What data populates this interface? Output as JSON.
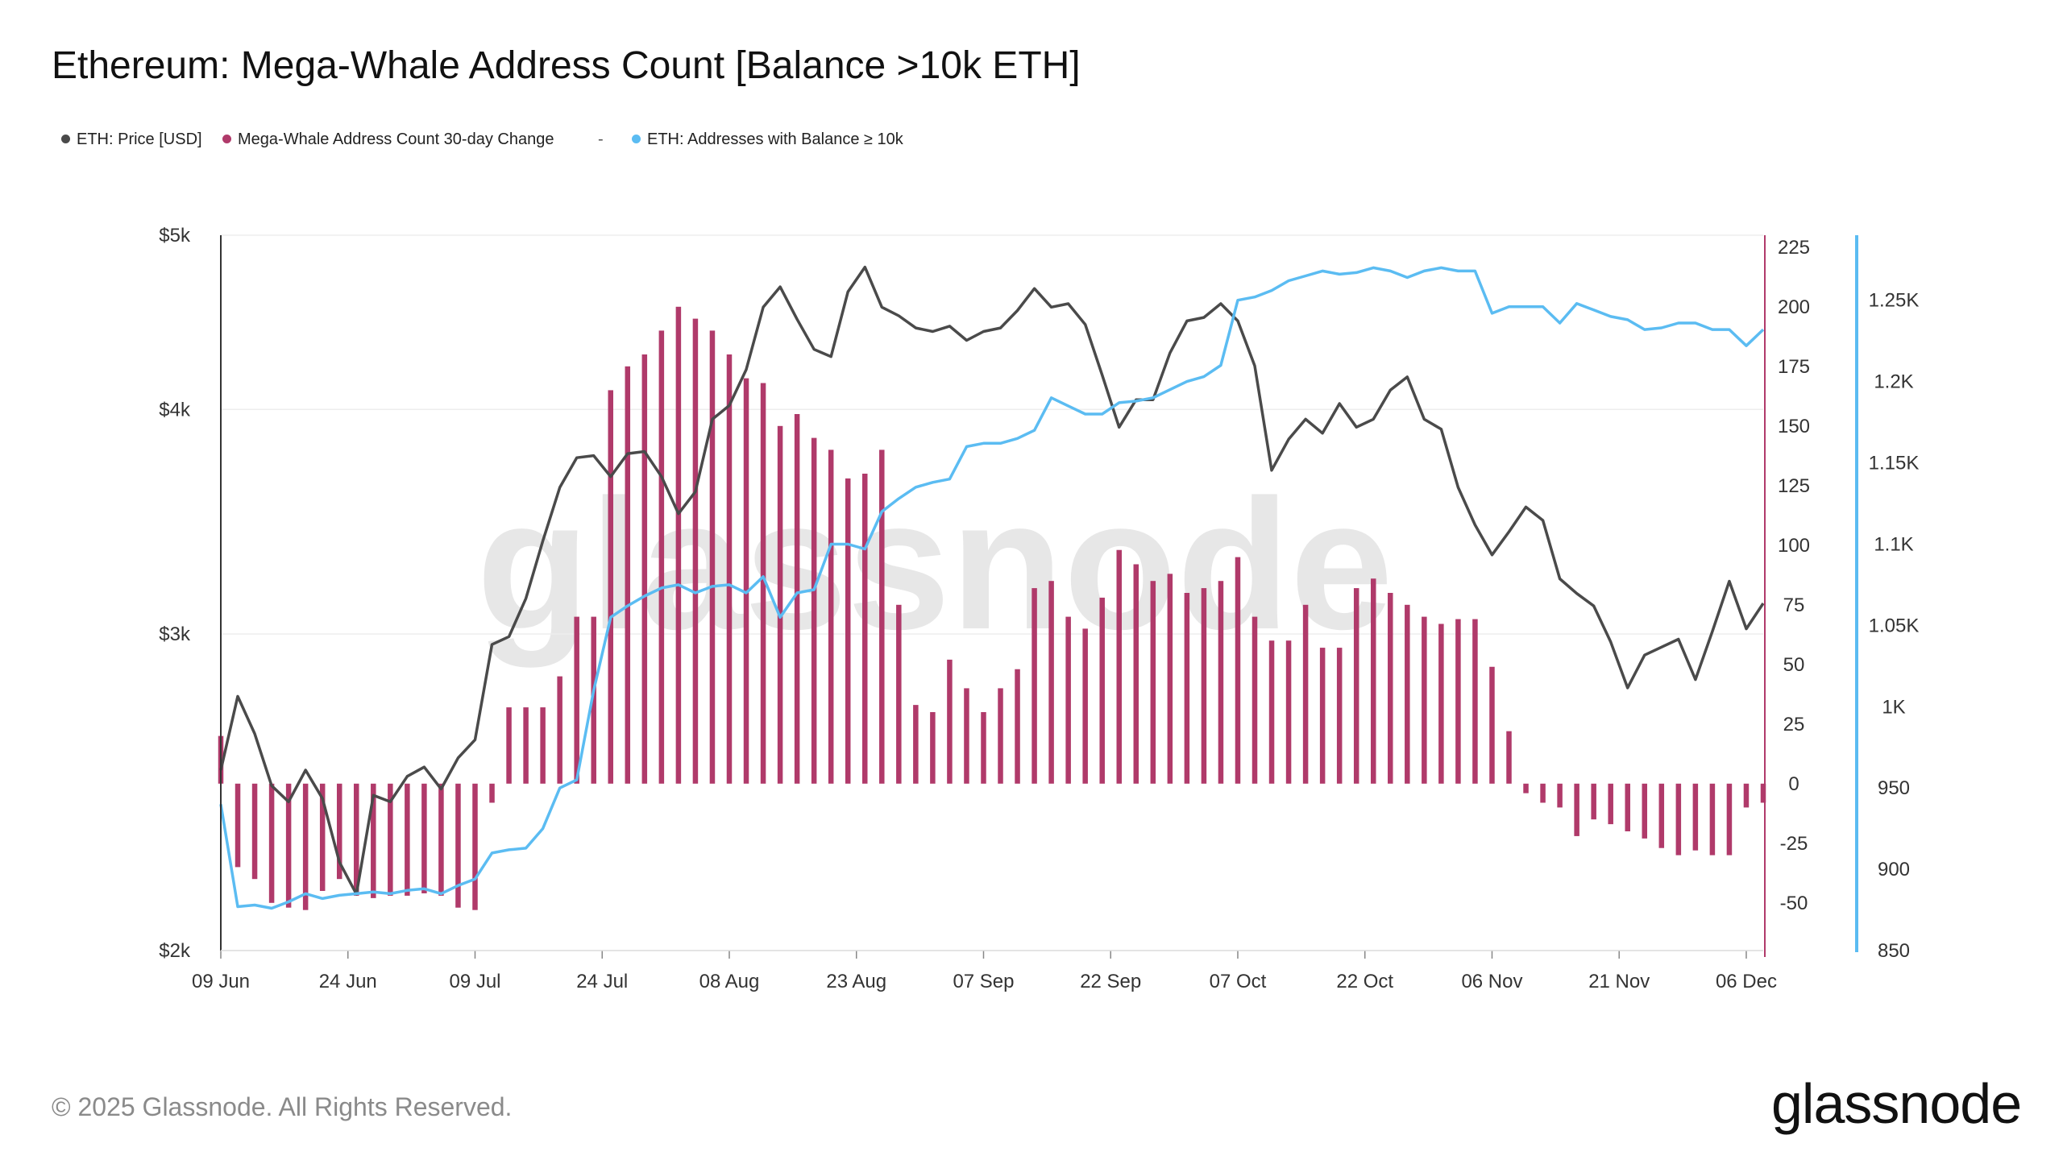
{
  "title": "Ethereum: Mega-Whale Address Count [Balance >10k ETH]",
  "legend": [
    {
      "label": "ETH: Price [USD]",
      "color": "#4a4a4a"
    },
    {
      "label": "Mega-Whale Address Count 30-day Change",
      "color": "#b03a6a"
    },
    {
      "label": "-",
      "color": "#555555"
    },
    {
      "label": "ETH: Addresses with Balance ≥ 10k",
      "color": "#5bbcf2"
    }
  ],
  "footer": "© 2025 Glassnode. All Rights Reserved.",
  "brand": "glassnode",
  "watermark": "glassnode",
  "chart_data": {
    "type": "line",
    "x_ticks": [
      "09 Jun",
      "24 Jun",
      "09 Jul",
      "24 Jul",
      "08 Aug",
      "23 Aug",
      "07 Sep",
      "22 Sep",
      "07 Oct",
      "22 Oct",
      "06 Nov",
      "21 Nov",
      "06 Dec"
    ],
    "x_range": [
      "2025-06-09",
      "2025-12-08"
    ],
    "left_axis": {
      "ticks": [
        "$2k",
        "$3k",
        "$4k",
        "$5k"
      ],
      "values": [
        2000,
        3000,
        4000,
        5000
      ],
      "scale": "log",
      "range": [
        2000,
        5000
      ]
    },
    "mid_axis": {
      "ticks": [
        "-50",
        "-25",
        "0",
        "25",
        "50",
        "75",
        "100",
        "125",
        "150",
        "175",
        "200",
        "225"
      ],
      "range": [
        -70,
        230
      ]
    },
    "right_axis": {
      "ticks": [
        "850",
        "900",
        "950",
        "1K",
        "1.05K",
        "1.1K",
        "1.15K",
        "1.2K",
        "1.25K"
      ],
      "range": [
        850,
        1290
      ]
    },
    "series": [
      {
        "name": "ETH: Price [USD]",
        "axis": "left",
        "color": "#4a4a4a",
        "x": [
          "2025-06-09",
          "2025-06-11",
          "2025-06-13",
          "2025-06-15",
          "2025-06-17",
          "2025-06-19",
          "2025-06-21",
          "2025-06-23",
          "2025-06-25",
          "2025-06-27",
          "2025-06-29",
          "2025-07-01",
          "2025-07-03",
          "2025-07-05",
          "2025-07-07",
          "2025-07-09",
          "2025-07-11",
          "2025-07-13",
          "2025-07-15",
          "2025-07-17",
          "2025-07-19",
          "2025-07-21",
          "2025-07-23",
          "2025-07-25",
          "2025-07-27",
          "2025-07-29",
          "2025-07-31",
          "2025-08-02",
          "2025-08-04",
          "2025-08-06",
          "2025-08-08",
          "2025-08-10",
          "2025-08-12",
          "2025-08-14",
          "2025-08-16",
          "2025-08-18",
          "2025-08-20",
          "2025-08-22",
          "2025-08-24",
          "2025-08-26",
          "2025-08-28",
          "2025-08-30",
          "2025-09-01",
          "2025-09-03",
          "2025-09-05",
          "2025-09-07",
          "2025-09-09",
          "2025-09-11",
          "2025-09-13",
          "2025-09-15",
          "2025-09-17",
          "2025-09-19",
          "2025-09-21",
          "2025-09-23",
          "2025-09-25",
          "2025-09-27",
          "2025-09-29",
          "2025-10-01",
          "2025-10-03",
          "2025-10-05",
          "2025-10-07",
          "2025-10-09",
          "2025-10-11",
          "2025-10-13",
          "2025-10-15",
          "2025-10-17",
          "2025-10-19",
          "2025-10-21",
          "2025-10-23",
          "2025-10-25",
          "2025-10-27",
          "2025-10-29",
          "2025-10-31",
          "2025-11-02",
          "2025-11-04",
          "2025-11-06",
          "2025-11-08",
          "2025-11-10",
          "2025-11-12",
          "2025-11-14",
          "2025-11-16",
          "2025-11-18",
          "2025-11-20",
          "2025-11-22",
          "2025-11-24",
          "2025-11-26",
          "2025-11-28",
          "2025-11-30",
          "2025-12-02",
          "2025-12-04",
          "2025-12-06",
          "2025-12-08"
        ],
        "values": [
          2520,
          2770,
          2640,
          2470,
          2420,
          2520,
          2430,
          2240,
          2150,
          2440,
          2420,
          2500,
          2530,
          2460,
          2560,
          2620,
          2960,
          2990,
          3140,
          3380,
          3620,
          3760,
          3770,
          3670,
          3780,
          3790,
          3670,
          3500,
          3600,
          3950,
          4020,
          4210,
          4560,
          4680,
          4490,
          4320,
          4280,
          4650,
          4800,
          4560,
          4510,
          4440,
          4420,
          4450,
          4370,
          4420,
          4440,
          4540,
          4670,
          4560,
          4580,
          4460,
          4180,
          3910,
          4050,
          4050,
          4300,
          4480,
          4500,
          4580,
          4480,
          4230,
          3700,
          3850,
          3950,
          3880,
          4030,
          3910,
          3950,
          4100,
          4170,
          3950,
          3900,
          3620,
          3450,
          3320,
          3420,
          3530,
          3470,
          3220,
          3160,
          3110,
          2970,
          2800,
          2920,
          2950,
          2980,
          2830,
          3010,
          3210,
          3020,
          3120
        ]
      },
      {
        "name": "ETH: Addresses with Balance ≥ 10k",
        "axis": "right",
        "color": "#5bbcf2",
        "x": [
          "2025-06-09",
          "2025-06-11",
          "2025-06-13",
          "2025-06-15",
          "2025-06-17",
          "2025-06-19",
          "2025-06-21",
          "2025-06-23",
          "2025-06-25",
          "2025-06-27",
          "2025-06-29",
          "2025-07-01",
          "2025-07-03",
          "2025-07-05",
          "2025-07-07",
          "2025-07-09",
          "2025-07-11",
          "2025-07-13",
          "2025-07-15",
          "2025-07-17",
          "2025-07-19",
          "2025-07-21",
          "2025-07-23",
          "2025-07-25",
          "2025-07-27",
          "2025-07-29",
          "2025-07-31",
          "2025-08-02",
          "2025-08-04",
          "2025-08-06",
          "2025-08-08",
          "2025-08-10",
          "2025-08-12",
          "2025-08-14",
          "2025-08-16",
          "2025-08-18",
          "2025-08-20",
          "2025-08-22",
          "2025-08-24",
          "2025-08-26",
          "2025-08-28",
          "2025-08-30",
          "2025-09-01",
          "2025-09-03",
          "2025-09-05",
          "2025-09-07",
          "2025-09-09",
          "2025-09-11",
          "2025-09-13",
          "2025-09-15",
          "2025-09-17",
          "2025-09-19",
          "2025-09-21",
          "2025-09-23",
          "2025-09-25",
          "2025-09-27",
          "2025-09-29",
          "2025-10-01",
          "2025-10-03",
          "2025-10-05",
          "2025-10-07",
          "2025-10-09",
          "2025-10-11",
          "2025-10-13",
          "2025-10-15",
          "2025-10-17",
          "2025-10-19",
          "2025-10-21",
          "2025-10-23",
          "2025-10-25",
          "2025-10-27",
          "2025-10-29",
          "2025-10-31",
          "2025-11-02",
          "2025-11-04",
          "2025-11-06",
          "2025-11-08",
          "2025-11-10",
          "2025-11-12",
          "2025-11-14",
          "2025-11-16",
          "2025-11-18",
          "2025-11-20",
          "2025-11-22",
          "2025-11-24",
          "2025-11-26",
          "2025-11-28",
          "2025-11-30",
          "2025-12-02",
          "2025-12-04",
          "2025-12-06",
          "2025-12-08"
        ],
        "values": [
          940,
          877,
          878,
          876,
          880,
          885,
          882,
          884,
          885,
          886,
          885,
          887,
          888,
          885,
          890,
          894,
          910,
          912,
          913,
          925,
          950,
          955,
          1010,
          1055,
          1062,
          1068,
          1073,
          1075,
          1070,
          1074,
          1075,
          1070,
          1080,
          1055,
          1070,
          1072,
          1100,
          1100,
          1097,
          1120,
          1128,
          1135,
          1138,
          1140,
          1160,
          1162,
          1162,
          1165,
          1170,
          1190,
          1185,
          1180,
          1180,
          1187,
          1188,
          1190,
          1195,
          1200,
          1203,
          1210,
          1250,
          1252,
          1256,
          1262,
          1265,
          1268,
          1266,
          1267,
          1270,
          1268,
          1264,
          1268,
          1270,
          1268,
          1268,
          1242,
          1246,
          1246,
          1246,
          1236,
          1248,
          1244,
          1240,
          1238,
          1232,
          1233,
          1236,
          1236,
          1232,
          1232,
          1222,
          1232
        ]
      }
    ],
    "bars": {
      "name": "Mega-Whale Address Count 30-day Change",
      "axis": "mid",
      "color": "#b03a6a",
      "x": [
        "2025-06-09",
        "2025-06-11",
        "2025-06-13",
        "2025-06-15",
        "2025-06-17",
        "2025-06-19",
        "2025-06-21",
        "2025-06-23",
        "2025-06-25",
        "2025-06-27",
        "2025-06-29",
        "2025-07-01",
        "2025-07-03",
        "2025-07-05",
        "2025-07-07",
        "2025-07-09",
        "2025-07-11",
        "2025-07-13",
        "2025-07-15",
        "2025-07-17",
        "2025-07-19",
        "2025-07-21",
        "2025-07-23",
        "2025-07-25",
        "2025-07-27",
        "2025-07-29",
        "2025-07-31",
        "2025-08-02",
        "2025-08-04",
        "2025-08-06",
        "2025-08-08",
        "2025-08-10",
        "2025-08-12",
        "2025-08-14",
        "2025-08-16",
        "2025-08-18",
        "2025-08-20",
        "2025-08-22",
        "2025-08-24",
        "2025-08-26",
        "2025-08-28",
        "2025-08-30",
        "2025-09-01",
        "2025-09-03",
        "2025-09-05",
        "2025-09-07",
        "2025-09-09",
        "2025-09-11",
        "2025-09-13",
        "2025-09-15",
        "2025-09-17",
        "2025-09-19",
        "2025-09-21",
        "2025-09-23",
        "2025-09-25",
        "2025-09-27",
        "2025-09-29",
        "2025-10-01",
        "2025-10-03",
        "2025-10-05",
        "2025-10-07",
        "2025-10-09",
        "2025-10-11",
        "2025-10-13",
        "2025-10-15",
        "2025-10-17",
        "2025-10-19",
        "2025-10-21",
        "2025-10-23",
        "2025-10-25",
        "2025-10-27",
        "2025-10-29",
        "2025-10-31",
        "2025-11-02",
        "2025-11-04",
        "2025-11-06",
        "2025-11-08",
        "2025-11-10",
        "2025-11-12",
        "2025-11-14",
        "2025-11-16",
        "2025-11-18",
        "2025-11-20",
        "2025-11-22",
        "2025-11-24",
        "2025-11-26",
        "2025-11-28",
        "2025-11-30",
        "2025-12-02",
        "2025-12-04",
        "2025-12-06",
        "2025-12-08"
      ],
      "values": [
        20,
        -35,
        -40,
        -50,
        -52,
        -53,
        -45,
        -40,
        -47,
        -48,
        -47,
        -47,
        -46,
        -47,
        -52,
        -53,
        -8,
        32,
        32,
        32,
        45,
        70,
        70,
        165,
        175,
        180,
        190,
        200,
        195,
        190,
        180,
        170,
        168,
        150,
        155,
        145,
        140,
        128,
        130,
        140,
        75,
        33,
        30,
        52,
        40,
        30,
        40,
        48,
        82,
        85,
        70,
        65,
        78,
        98,
        92,
        85,
        88,
        80,
        82,
        85,
        95,
        70,
        60,
        60,
        75,
        57,
        57,
        82,
        86,
        80,
        75,
        70,
        67,
        69,
        69,
        49,
        22,
        -4,
        -8,
        -10,
        -22,
        -15,
        -17,
        -20,
        -23,
        -27,
        -30,
        -28,
        -30,
        -30,
        -10,
        -8
      ]
    }
  }
}
